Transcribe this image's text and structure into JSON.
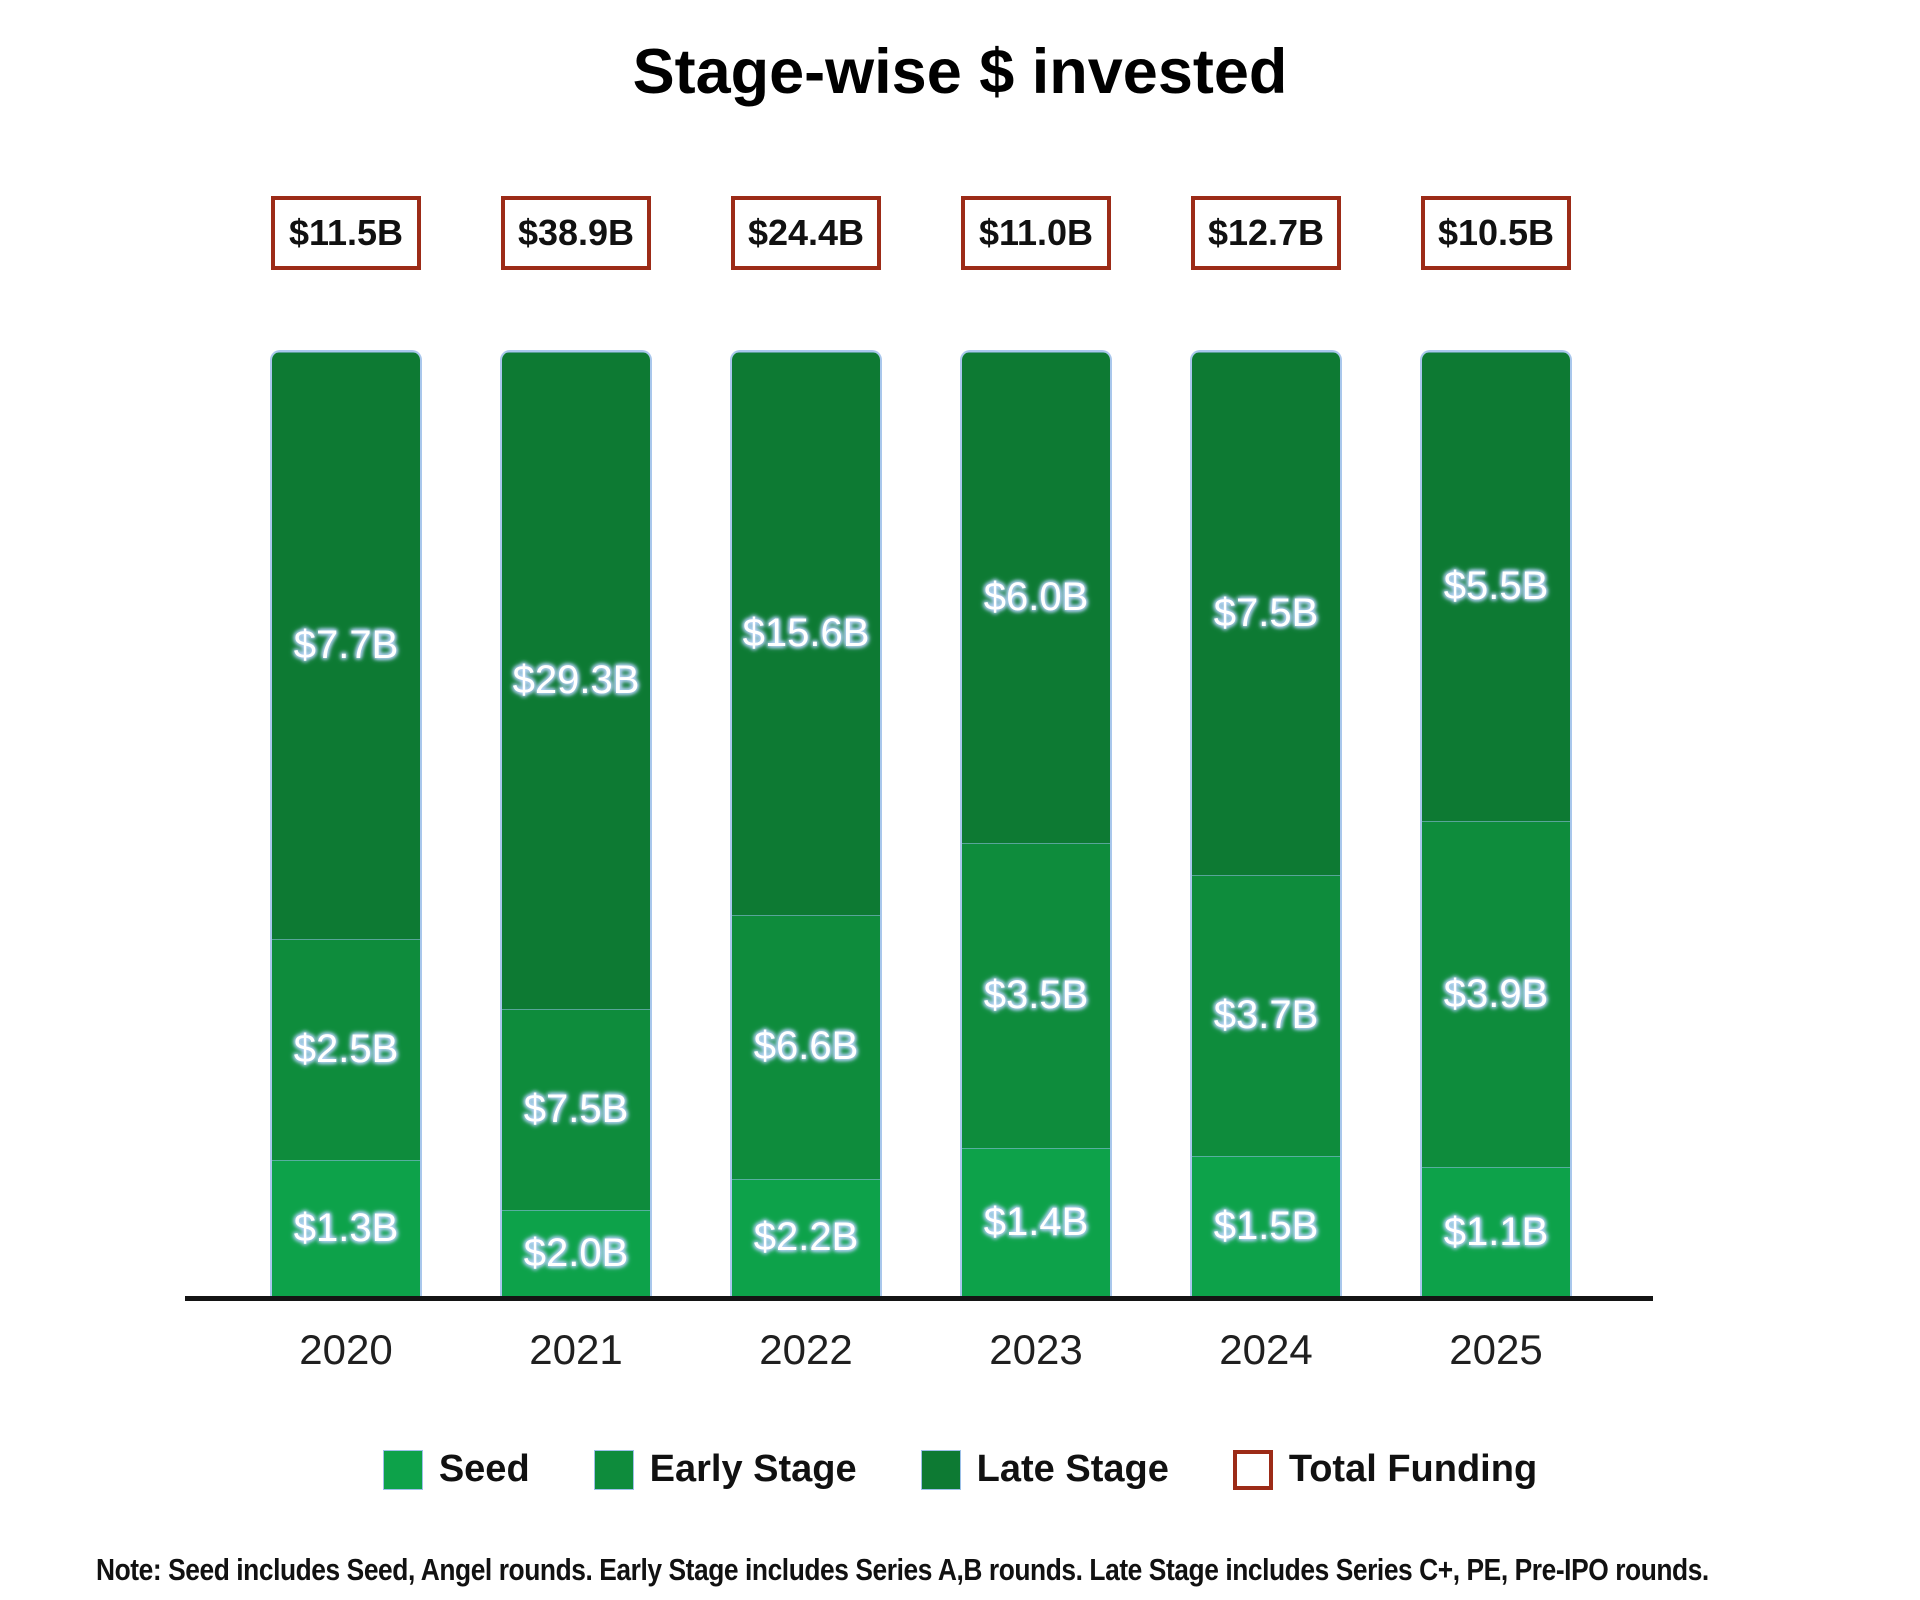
{
  "title": "Stage-wise $ invested",
  "note": "Note: Seed includes Seed, Angel rounds. Early Stage includes Series A,B rounds. Late Stage includes Series C+, PE, Pre-IPO rounds.",
  "colors": {
    "seed": "#0DA24A",
    "early_stage": "#0E8C3C",
    "late_stage": "#0D7A33",
    "total_funding_border": "#9C2B17",
    "axis": "#141414",
    "label_glow": "#B5D2F7",
    "label_text": "#FFFFFF"
  },
  "legend": [
    {
      "label": "Seed",
      "swatch": "seed"
    },
    {
      "label": "Early Stage",
      "swatch": "early_stage"
    },
    {
      "label": "Late Stage",
      "swatch": "late_stage"
    },
    {
      "label": "Total Funding",
      "swatch": "total_funding"
    }
  ],
  "chart_data": {
    "type": "bar",
    "stacked": true,
    "normalized_height": true,
    "grid": false,
    "legend_position": "bottom",
    "title": "Stage-wise $ invested",
    "xlabel": "",
    "ylabel": "",
    "categories": [
      "2020",
      "2021",
      "2022",
      "2023",
      "2024",
      "2025"
    ],
    "series": [
      {
        "name": "Seed",
        "color": "#0DA24A",
        "values": [
          1.3,
          2.0,
          2.2,
          1.4,
          1.5,
          1.1
        ],
        "labels": [
          "$1.3B",
          "$2.0B",
          "$2.2B",
          "$1.4B",
          "$1.5B",
          "$1.1B"
        ]
      },
      {
        "name": "Early Stage",
        "color": "#0E8C3C",
        "values": [
          2.5,
          7.5,
          6.6,
          3.5,
          3.7,
          3.9
        ],
        "labels": [
          "$2.5B",
          "$7.5B",
          "$6.6B",
          "$3.5B",
          "$3.7B",
          "$3.9B"
        ]
      },
      {
        "name": "Late Stage",
        "color": "#0D7A33",
        "values": [
          7.7,
          29.3,
          15.6,
          6.0,
          7.5,
          5.5
        ],
        "labels": [
          "$7.7B",
          "$29.3B",
          "$15.6B",
          "$6.0B",
          "$7.5B",
          "$5.5B"
        ]
      }
    ],
    "totals": {
      "name": "Total Funding",
      "values": [
        11.5,
        38.9,
        24.4,
        11.0,
        12.7,
        10.5
      ],
      "labels": [
        "$11.5B",
        "$38.9B",
        "$24.4B",
        "$11.0B",
        "$12.7B",
        "$10.5B"
      ]
    }
  }
}
